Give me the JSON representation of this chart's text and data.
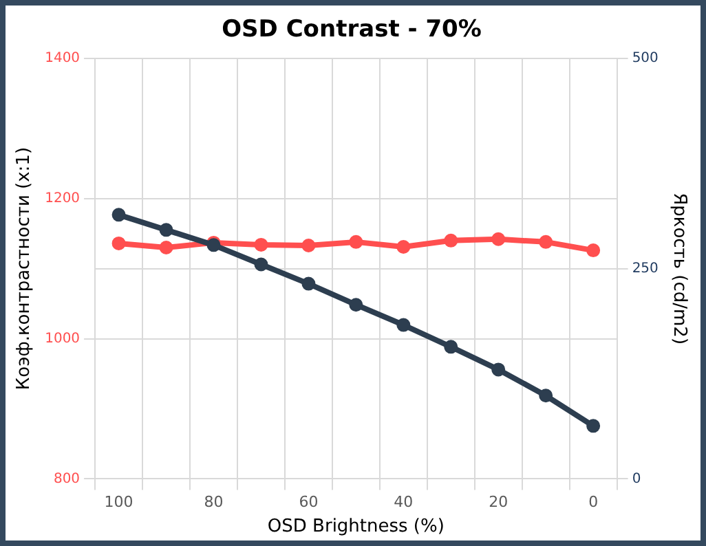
{
  "chart_data": {
    "type": "line",
    "title": "OSD Contrast - 70%",
    "xlabel": "OSD Brightness (%)",
    "ylabel": "Коэф.контрастности (x:1)",
    "y2label": "Яркость (cd/m2)",
    "categories": [
      "100",
      null,
      "80",
      null,
      "60",
      null,
      "40",
      null,
      "20",
      null,
      "0"
    ],
    "series": [
      {
        "color": "#ff4f4f",
        "values": [
          1136,
          1130,
          1137,
          1134,
          1133,
          1138,
          1131,
          1140,
          1142,
          1138,
          1126
        ]
      },
      {
        "color": "#2d3e50",
        "axis": "y2",
        "values": [
          314,
          296,
          278,
          255,
          232,
          207,
          183,
          157,
          130,
          99,
          63
        ]
      }
    ],
    "ylim": [
      800,
      1400
    ],
    "yticks": [
      800,
      1000,
      1200,
      1400
    ],
    "y2lim": [
      0,
      500
    ],
    "y2ticks": [
      0,
      250,
      500
    ],
    "grid": true,
    "legend": false,
    "marker": "circle",
    "line_style": "solid"
  }
}
